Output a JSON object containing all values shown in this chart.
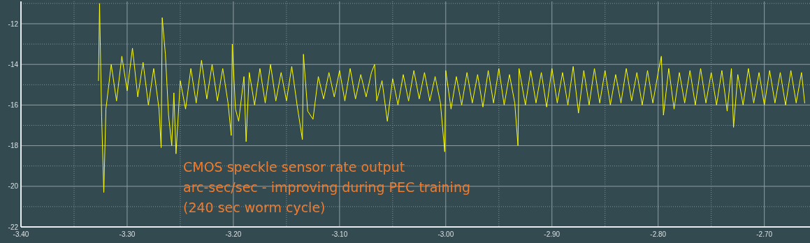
{
  "chart_data": {
    "type": "line",
    "x": [
      -3.327,
      -3.326,
      -3.324,
      -3.322,
      -3.32,
      -3.315,
      -3.31,
      -3.305,
      -3.3,
      -3.295,
      -3.29,
      -3.285,
      -3.28,
      -3.275,
      -3.27,
      -3.268,
      -3.267,
      -3.264,
      -3.261,
      -3.258,
      -3.256,
      -3.254,
      -3.25,
      -3.245,
      -3.24,
      -3.235,
      -3.23,
      -3.225,
      -3.22,
      -3.215,
      -3.21,
      -3.205,
      -3.202,
      -3.201,
      -3.198,
      -3.195,
      -3.19,
      -3.188,
      -3.185,
      -3.18,
      -3.175,
      -3.17,
      -3.165,
      -3.16,
      -3.155,
      -3.15,
      -3.145,
      -3.14,
      -3.135,
      -3.134,
      -3.13,
      -3.125,
      -3.12,
      -3.115,
      -3.11,
      -3.105,
      -3.1,
      -3.095,
      -3.09,
      -3.085,
      -3.08,
      -3.075,
      -3.07,
      -3.067,
      -3.065,
      -3.06,
      -3.055,
      -3.05,
      -3.045,
      -3.04,
      -3.035,
      -3.03,
      -3.025,
      -3.02,
      -3.015,
      -3.01,
      -3.005,
      -3.001,
      -3.0,
      -2.995,
      -2.99,
      -2.985,
      -2.98,
      -2.975,
      -2.97,
      -2.965,
      -2.96,
      -2.955,
      -2.95,
      -2.945,
      -2.94,
      -2.935,
      -2.932,
      -2.931,
      -2.925,
      -2.92,
      -2.915,
      -2.91,
      -2.905,
      -2.9,
      -2.895,
      -2.89,
      -2.885,
      -2.88,
      -2.875,
      -2.87,
      -2.865,
      -2.86,
      -2.855,
      -2.85,
      -2.845,
      -2.84,
      -2.835,
      -2.83,
      -2.825,
      -2.82,
      -2.815,
      -2.81,
      -2.805,
      -2.8,
      -2.797,
      -2.795,
      -2.79,
      -2.785,
      -2.78,
      -2.775,
      -2.77,
      -2.765,
      -2.76,
      -2.755,
      -2.75,
      -2.745,
      -2.74,
      -2.735,
      -2.731,
      -2.729,
      -2.725,
      -2.72,
      -2.715,
      -2.71,
      -2.705,
      -2.7,
      -2.695,
      -2.69,
      -2.685,
      -2.68,
      -2.675,
      -2.67,
      -2.665,
      -2.662
    ],
    "series": [
      {
        "color": "#ffff00",
        "values": [
          -14.8,
          -11.0,
          -16.6,
          -20.3,
          -16.2,
          -14.0,
          -15.8,
          -13.6,
          -15.3,
          -13.2,
          -15.6,
          -13.9,
          -16.0,
          -14.2,
          -16.2,
          -18.1,
          -11.7,
          -13.5,
          -16.5,
          -18.0,
          -15.4,
          -18.4,
          -14.8,
          -16.2,
          -14.2,
          -15.9,
          -13.8,
          -15.7,
          -14.0,
          -15.8,
          -14.2,
          -15.9,
          -17.5,
          -13.0,
          -16.2,
          -16.8,
          -14.6,
          -17.8,
          -14.4,
          -16.0,
          -14.2,
          -15.9,
          -14.0,
          -15.8,
          -14.4,
          -15.8,
          -14.1,
          -16.0,
          -17.7,
          -13.5,
          -16.3,
          -16.7,
          -14.6,
          -15.7,
          -14.4,
          -15.6,
          -14.3,
          -15.8,
          -14.2,
          -15.7,
          -14.5,
          -15.6,
          -14.4,
          -14.0,
          -15.8,
          -14.8,
          -16.8,
          -14.7,
          -16.0,
          -14.5,
          -15.8,
          -14.3,
          -15.7,
          -14.4,
          -15.8,
          -14.6,
          -15.9,
          -18.3,
          -14.3,
          -16.2,
          -14.6,
          -16.0,
          -14.4,
          -15.9,
          -14.5,
          -16.1,
          -14.3,
          -15.9,
          -14.2,
          -16.0,
          -14.5,
          -15.9,
          -18.0,
          -14.2,
          -16.0,
          -14.3,
          -15.9,
          -14.4,
          -16.1,
          -14.2,
          -15.9,
          -14.4,
          -16.0,
          -14.1,
          -16.4,
          -14.3,
          -16.0,
          -14.2,
          -15.9,
          -14.3,
          -16.0,
          -14.5,
          -15.9,
          -14.2,
          -15.8,
          -14.4,
          -16.0,
          -14.3,
          -15.9,
          -14.4,
          -13.6,
          -16.5,
          -14.2,
          -16.2,
          -14.4,
          -15.9,
          -14.3,
          -16.0,
          -14.2,
          -15.9,
          -14.4,
          -16.0,
          -14.3,
          -16.3,
          -14.2,
          -17.1,
          -14.5,
          -16.0,
          -14.2,
          -15.9,
          -14.4,
          -16.0,
          -14.3,
          -15.9,
          -14.4,
          -16.0,
          -14.3,
          -15.9,
          -14.4,
          -15.9
        ]
      }
    ],
    "xlim": [
      -3.4,
      -2.657
    ],
    "xticks": [
      {
        "value": -3.4,
        "label": "-3.40"
      },
      {
        "value": -3.3,
        "label": "-3.30"
      },
      {
        "value": -3.2,
        "label": "-3.20"
      },
      {
        "value": -3.1,
        "label": "-3.10"
      },
      {
        "value": -3.0,
        "label": "-3.00"
      },
      {
        "value": -2.9,
        "label": "-2.90"
      },
      {
        "value": -2.8,
        "label": "-2.80"
      },
      {
        "value": -2.7,
        "label": "-2.70"
      }
    ],
    "ylim": [
      -22,
      -10.9
    ],
    "yticks": [
      -22,
      -20,
      -18,
      -16,
      -14,
      -12
    ],
    "grid": true,
    "line_style": "solid",
    "annotations": [
      "CMOS speckle sensor rate output",
      "arc-sec/sec - improving during PEC training",
      "(240 sec worm cycle)"
    ]
  }
}
